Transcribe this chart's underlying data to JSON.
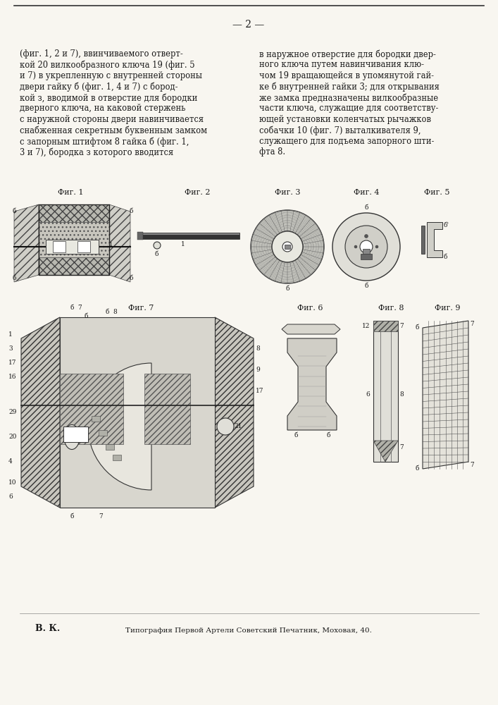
{
  "page_number": "— 2 —",
  "background_color": "#f8f6f0",
  "text_color": "#1a1a1a",
  "left_column_text": [
    "(фиг. 1, 2 и 7), ввинчиваемого отверт-",
    "кой 20 вилкообразного ключа 19 (фиг. 5",
    "и 7) в укрепленную с внутренней стороны",
    "двери гайку б (фиг. 1, 4 и 7) с бород-",
    "кой з, вводимой в отверстие для бородки",
    "дверного ключа, на каковой стержень",
    "с наружной стороны двери навинчивается",
    "снабженная секретным буквенным замком",
    "с запорным штифтом 8 гайка б (фиг. 1,",
    "3 и 7), бородка з которого вводится"
  ],
  "right_column_text": [
    "в наружное отверстие для бородки двер-",
    "ного ключа путем навинчивания клю-",
    "чом 19 вращающейся в упомянутой гай-",
    "ке б внутренней гайки 3; для открывания",
    "же замка предназначены вилкообразные",
    "части ключа, служащие для соответству-",
    "ющей установки коленчатых рычажков",
    "собачки 10 (фиг. 7) выталкивателя 9,",
    "служащего для подъема запорного шти-",
    "фта 8."
  ],
  "footer_left": "В. К.",
  "footer_center": "Типография Первой Артели Советский Печатник, Моховая, 40."
}
